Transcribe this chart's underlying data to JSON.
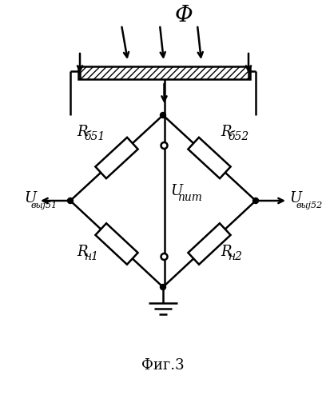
{
  "title": "Фиг.3",
  "phi_label": "Φ",
  "u_pit_label": "U",
  "u_pit_sub": "пит",
  "u_vyx1_label": "U",
  "u_vyx1_sub": "выј51",
  "u_vyx2_label": "U",
  "u_vyx2_sub": "выј52",
  "r_b1_label": "R",
  "r_b1_sub": "б51",
  "r_b2_label": "R",
  "r_b2_sub": "б52",
  "r_h1_label": "R",
  "r_h1_sub": "н1",
  "r_h2_label": "R",
  "r_h2_sub": "н2",
  "bg_color": "#ffffff",
  "line_color": "#000000",
  "figsize": [
    4.08,
    4.99
  ],
  "dpi": 100
}
